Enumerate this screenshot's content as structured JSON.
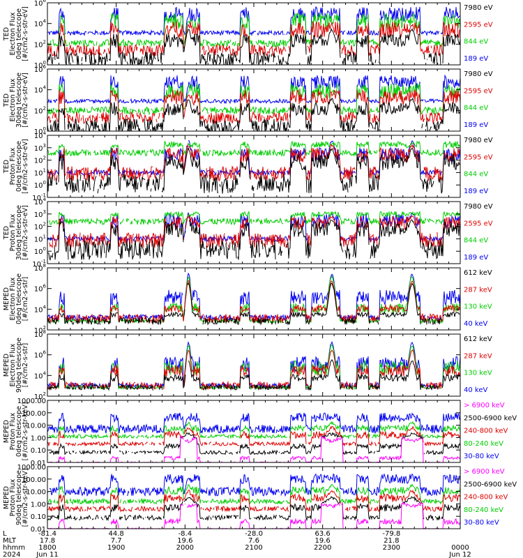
{
  "chart_data": {
    "type": "line",
    "x_axis": {
      "rows": [
        {
          "label": "L",
          "values": [
            "-81.4",
            "44.8",
            "-8.4",
            "-28.0",
            "63.6",
            "-79.8",
            ""
          ]
        },
        {
          "label": "MLT",
          "values": [
            "17.8",
            "7.7",
            "19.6",
            "7.6",
            "19.6",
            "21.8",
            ""
          ]
        },
        {
          "label": "hhmm",
          "values": [
            "1800",
            "1900",
            "2000",
            "2100",
            "2200",
            "2300",
            "0000"
          ]
        },
        {
          "label": "2024",
          "values": [
            "Jun 11",
            "",
            "",
            "",
            "",
            "",
            "Jun 12"
          ]
        }
      ],
      "ticks": [
        "1800",
        "1900",
        "2000",
        "2100",
        "2200",
        "2300",
        "0000"
      ]
    },
    "panels": [
      {
        "ylabel": [
          "TED",
          "Electron Flux",
          "0deg telescope",
          "[#/cm2-s-str-eV]"
        ],
        "log": true,
        "ylim_exp": [
          0,
          6
        ],
        "yticks": [
          {
            "m": "10",
            "e": "0"
          },
          {
            "m": "10",
            "e": "2"
          },
          {
            "m": "10",
            "e": "4"
          },
          {
            "m": "10",
            "e": "6"
          }
        ],
        "legend": [
          {
            "label": "7980 eV",
            "color": "#000000"
          },
          {
            "label": "2595 eV",
            "color": "#dd0000"
          },
          {
            "label": "844 eV",
            "color": "#00cc00"
          },
          {
            "label": "189 eV",
            "color": "#0000ee"
          }
        ],
        "series": [
          {
            "color": "#0000ee",
            "base": 3.1,
            "noise": 0.22,
            "spikes": 5.6,
            "bumps": 4.7
          },
          {
            "color": "#00cc00",
            "base": 2.1,
            "noise": 0.35,
            "spikes": 5.0,
            "bumps": 4.2
          },
          {
            "color": "#dd0000",
            "base": 1.4,
            "noise": 0.55,
            "spikes": 4.2,
            "bumps": 3.8
          },
          {
            "color": "#000000",
            "base": 0.6,
            "noise": 0.7,
            "spikes": 3.0,
            "bumps": 3.4
          }
        ]
      },
      {
        "ylabel": [
          "TED",
          "Electron Flux",
          "30deg telescope",
          "[#/cm2-s-str-eV]"
        ],
        "log": true,
        "ylim_exp": [
          0,
          6
        ],
        "yticks": [
          {
            "m": "10",
            "e": "0"
          },
          {
            "m": "10",
            "e": "2"
          },
          {
            "m": "10",
            "e": "4"
          },
          {
            "m": "10",
            "e": "6"
          }
        ],
        "legend": [
          {
            "label": "7980 eV",
            "color": "#000000"
          },
          {
            "label": "2595 eV",
            "color": "#dd0000"
          },
          {
            "label": "844 eV",
            "color": "#00cc00"
          },
          {
            "label": "189 eV",
            "color": "#0000ee"
          }
        ],
        "series": [
          {
            "color": "#0000ee",
            "base": 2.9,
            "noise": 0.2,
            "spikes": 5.4,
            "bumps": 4.3
          },
          {
            "color": "#00cc00",
            "base": 2.0,
            "noise": 0.35,
            "spikes": 4.6,
            "bumps": 3.8
          },
          {
            "color": "#dd0000",
            "base": 1.3,
            "noise": 0.55,
            "spikes": 4.0,
            "bumps": 3.5
          },
          {
            "color": "#000000",
            "base": 0.5,
            "noise": 0.7,
            "spikes": 2.8,
            "bumps": 3.1
          }
        ]
      },
      {
        "ylabel": [
          "TED",
          "Proton Flux",
          "0deg telescope",
          "[#/cm2-s-str-eV]"
        ],
        "log": true,
        "ylim_exp": [
          -1,
          4
        ],
        "yticks": [
          {
            "m": "10",
            "e": "-1"
          },
          {
            "m": "10",
            "e": "0"
          },
          {
            "m": "10",
            "e": "1"
          },
          {
            "m": "10",
            "e": "2"
          },
          {
            "m": "10",
            "e": "3"
          },
          {
            "m": "10",
            "e": "4"
          }
        ],
        "legend": [
          {
            "label": "7980 eV",
            "color": "#000000"
          },
          {
            "label": "2595 eV",
            "color": "#dd0000"
          },
          {
            "label": "844 eV",
            "color": "#00cc00"
          },
          {
            "label": "189 eV",
            "color": "#0000ee"
          }
        ],
        "series": [
          {
            "color": "#0000ee",
            "base": 1.0,
            "noise": 0.2,
            "spikes": 3.0,
            "bumps": 3.5
          },
          {
            "color": "#00cc00",
            "base": 2.6,
            "noise": 0.25,
            "spikes": 3.5,
            "bumps": 3.3
          },
          {
            "color": "#dd0000",
            "base": 0.9,
            "noise": 0.6,
            "spikes": 3.0,
            "bumps": 3.2
          },
          {
            "color": "#000000",
            "base": 0.1,
            "noise": 0.8,
            "spikes": 2.5,
            "bumps": 2.9
          }
        ]
      },
      {
        "ylabel": [
          "TED",
          "Proton Flux",
          "30deg telescope",
          "[#/cm2-s-str-eV]"
        ],
        "log": true,
        "ylim_exp": [
          -1,
          4
        ],
        "yticks": [
          {
            "m": "10",
            "e": "-1"
          },
          {
            "m": "10",
            "e": "0"
          },
          {
            "m": "10",
            "e": "1"
          },
          {
            "m": "10",
            "e": "2"
          },
          {
            "m": "10",
            "e": "3"
          },
          {
            "m": "10",
            "e": "4"
          }
        ],
        "legend": [
          {
            "label": "7980 eV",
            "color": "#000000"
          },
          {
            "label": "2595 eV",
            "color": "#dd0000"
          },
          {
            "label": "844 eV",
            "color": "#00cc00"
          },
          {
            "label": "189 eV",
            "color": "#0000ee"
          }
        ],
        "series": [
          {
            "color": "#0000ee",
            "base": 1.0,
            "noise": 0.2,
            "spikes": 3.0,
            "bumps": 3.0
          },
          {
            "color": "#00cc00",
            "base": 2.4,
            "noise": 0.25,
            "spikes": 3.2,
            "bumps": 2.9
          },
          {
            "color": "#dd0000",
            "base": 0.9,
            "noise": 0.6,
            "spikes": 2.8,
            "bumps": 2.8
          },
          {
            "color": "#000000",
            "base": 0.1,
            "noise": 0.8,
            "spikes": 2.4,
            "bumps": 2.5
          }
        ]
      },
      {
        "ylabel": [
          "MEPED",
          "Electron Flux",
          "0deg telescope",
          "[#/cm2-s-str]"
        ],
        "log": true,
        "ylim_exp": [
          1,
          8
        ],
        "yticks": [
          {
            "m": "10",
            "e": "2"
          },
          {
            "m": "10",
            "e": "4"
          },
          {
            "m": "10",
            "e": "6"
          },
          {
            "m": "10",
            "e": "8"
          }
        ],
        "legend": [
          {
            "label": "612 keV",
            "color": "#000000"
          },
          {
            "label": "287 keV",
            "color": "#dd0000"
          },
          {
            "label": "130 keV",
            "color": "#00cc00"
          },
          {
            "label": "40 keV",
            "color": "#0000ee"
          }
        ],
        "series": [
          {
            "color": "#0000ee",
            "base": 2.4,
            "noise": 0.3,
            "spikes": 5.5,
            "bumps": 7.3
          },
          {
            "color": "#00cc00",
            "base": 2.0,
            "noise": 0.2,
            "spikes": 4.0,
            "bumps": 7.0
          },
          {
            "color": "#dd0000",
            "base": 2.3,
            "noise": 0.5,
            "spikes": 3.8,
            "bumps": 6.5
          },
          {
            "color": "#000000",
            "base": 2.0,
            "noise": 0.4,
            "spikes": 3.0,
            "bumps": 6.2
          }
        ]
      },
      {
        "ylabel": [
          "MEPED",
          "Electron Flux",
          "90deg telescope",
          "[#/cm2-s-str]"
        ],
        "log": true,
        "ylim_exp": [
          1,
          8
        ],
        "yticks": [
          {
            "m": "10",
            "e": "2"
          },
          {
            "m": "10",
            "e": "4"
          },
          {
            "m": "10",
            "e": "6"
          },
          {
            "m": "10",
            "e": "8"
          }
        ],
        "legend": [
          {
            "label": "612 keV",
            "color": "#000000"
          },
          {
            "label": "287 keV",
            "color": "#dd0000"
          },
          {
            "label": "130 keV",
            "color": "#00cc00"
          },
          {
            "label": "40 keV",
            "color": "#0000ee"
          }
        ],
        "series": [
          {
            "color": "#0000ee",
            "base": 2.2,
            "noise": 0.3,
            "spikes": 5.5,
            "bumps": 7.0
          },
          {
            "color": "#00cc00",
            "base": 2.0,
            "noise": 0.2,
            "spikes": 5.0,
            "bumps": 6.7
          },
          {
            "color": "#dd0000",
            "base": 2.2,
            "noise": 0.4,
            "spikes": 4.5,
            "bumps": 6.2
          },
          {
            "color": "#000000",
            "base": 2.0,
            "noise": 0.3,
            "spikes": 3.5,
            "bumps": 5.0
          }
        ]
      },
      {
        "ylabel": [
          "MEPED",
          "Proton Flux",
          "0deg telescope",
          "[#/cm2-s-str-keV]"
        ],
        "log": true,
        "ylim_exp": [
          -2,
          3
        ],
        "yticks": [
          {
            "t": "0.01"
          },
          {
            "t": "0.10"
          },
          {
            "t": "1.00"
          },
          {
            "t": "10.00"
          },
          {
            "t": "100.00"
          },
          {
            "t": "1000.00"
          }
        ],
        "legend": [
          {
            "label": "> 6900 keV",
            "color": "#ff00ff"
          },
          {
            "label": "2500-6900 keV",
            "color": "#000000"
          },
          {
            "label": "240-800 keV",
            "color": "#dd0000"
          },
          {
            "label": "80-240 keV",
            "color": "#00cc00"
          },
          {
            "label": "30-80 keV",
            "color": "#0000ee"
          }
        ],
        "series": [
          {
            "color": "#0000ee",
            "base": 0.7,
            "noise": 0.35,
            "spikes": 2.0,
            "bumps": 1.6
          },
          {
            "color": "#00cc00",
            "base": 0.1,
            "noise": 0.15,
            "spikes": 1.0,
            "bumps": 1.2
          },
          {
            "color": "#dd0000",
            "base": -0.5,
            "noise": 0.15,
            "spikes": 0.5,
            "bumps": 0.8
          },
          {
            "color": "#000000",
            "base": -1.2,
            "noise": 0.15,
            "spikes": -0.5,
            "bumps": 0.3
          },
          {
            "color": "#ff00ff",
            "base": -2.0,
            "noise": 0.05,
            "spikes": -1.5,
            "bumps": -0.3
          }
        ]
      },
      {
        "ylabel": [
          "MEPED",
          "Proton Flux",
          "90deg telescope",
          "[#/cm2-s-str-keV]"
        ],
        "log": true,
        "ylim_exp": [
          -2,
          3
        ],
        "yticks": [
          {
            "t": "0.01"
          },
          {
            "t": "0.10"
          },
          {
            "t": "1.00"
          },
          {
            "t": "10.00"
          },
          {
            "t": "100.00"
          },
          {
            "t": "1000.00"
          }
        ],
        "legend": [
          {
            "label": "> 6900 keV",
            "color": "#ff00ff"
          },
          {
            "label": "2500-6900 keV",
            "color": "#000000"
          },
          {
            "label": "240-800 keV",
            "color": "#dd0000"
          },
          {
            "label": "80-240 keV",
            "color": "#00cc00"
          },
          {
            "label": "30-80 keV",
            "color": "#0000ee"
          }
        ],
        "series": [
          {
            "color": "#0000ee",
            "base": 1.0,
            "noise": 0.35,
            "spikes": 2.4,
            "bumps": 2.0
          },
          {
            "color": "#00cc00",
            "base": 0.2,
            "noise": 0.2,
            "spikes": 1.4,
            "bumps": 1.5
          },
          {
            "color": "#dd0000",
            "base": -0.4,
            "noise": 0.2,
            "spikes": 0.8,
            "bumps": 1.0
          },
          {
            "color": "#000000",
            "base": -1.1,
            "noise": 0.2,
            "spikes": 0.0,
            "bumps": 0.5
          },
          {
            "color": "#ff00ff",
            "base": -2.0,
            "noise": 0.05,
            "spikes": -1.2,
            "bumps": -0.2
          }
        ]
      }
    ],
    "passes": [
      {
        "start": "1810",
        "end": "1815"
      },
      {
        "start": "1855",
        "end": "1902"
      },
      {
        "start": "1942",
        "end": "1958"
      },
      {
        "start": "2003",
        "end": "2013"
      },
      {
        "start": "2048",
        "end": "2056"
      },
      {
        "start": "2132",
        "end": "2145"
      },
      {
        "start": "2150",
        "end": "2215"
      },
      {
        "start": "2230",
        "end": "2240"
      },
      {
        "start": "2250",
        "end": "2325"
      },
      {
        "start": "2345",
        "end": "2400"
      }
    ],
    "bumps": [
      {
        "center": "2003",
        "width_min": 6
      },
      {
        "center": "2208",
        "width_min": 8
      },
      {
        "center": "2318",
        "width_min": 8
      }
    ]
  }
}
